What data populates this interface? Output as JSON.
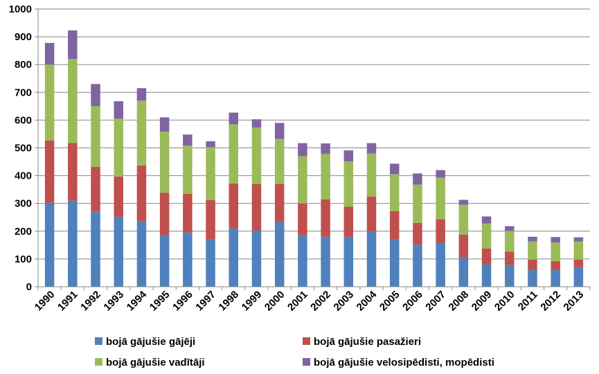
{
  "chart_data": {
    "type": "bar",
    "stacked": true,
    "categories": [
      "1990",
      "1991",
      "1992",
      "1993",
      "1994",
      "1995",
      "1996",
      "1997",
      "1998",
      "1999",
      "2000",
      "2001",
      "2002",
      "2003",
      "2004",
      "2005",
      "2006",
      "2007",
      "2008",
      "2009",
      "2010",
      "2011",
      "2012",
      "2013"
    ],
    "series": [
      {
        "name": "bojā gājušie gājēji",
        "color": "#4f81bd",
        "values": [
          302,
          310,
          270,
          252,
          235,
          186,
          195,
          170,
          210,
          202,
          233,
          185,
          180,
          180,
          198,
          172,
          152,
          158,
          105,
          80,
          78,
          60,
          60,
          70
        ]
      },
      {
        "name": "bojā gājušie pasažieri",
        "color": "#c0504d",
        "values": [
          225,
          208,
          162,
          145,
          202,
          152,
          140,
          142,
          162,
          168,
          137,
          115,
          135,
          108,
          127,
          100,
          78,
          85,
          82,
          58,
          48,
          38,
          32,
          28
        ]
      },
      {
        "name": "bojā gājušie vadītāji",
        "color": "#9bbb59",
        "values": [
          273,
          302,
          218,
          208,
          233,
          220,
          173,
          190,
          213,
          203,
          162,
          170,
          163,
          163,
          155,
          133,
          138,
          150,
          108,
          90,
          75,
          65,
          67,
          65
        ]
      },
      {
        "name": "bojā gājušie velosipēdisti, mopēdisti",
        "color": "#8064a2",
        "values": [
          78,
          103,
          80,
          63,
          45,
          52,
          40,
          22,
          42,
          30,
          58,
          47,
          38,
          40,
          37,
          38,
          40,
          27,
          18,
          25,
          17,
          17,
          20,
          15
        ]
      }
    ],
    "title": "",
    "xlabel": "",
    "ylabel": "",
    "ylim": [
      0,
      1000
    ],
    "yticks": [
      "0",
      "100",
      "200",
      "300",
      "400",
      "500",
      "600",
      "700",
      "800",
      "900",
      "1000"
    ],
    "grid": true,
    "legend_position": "bottom"
  }
}
